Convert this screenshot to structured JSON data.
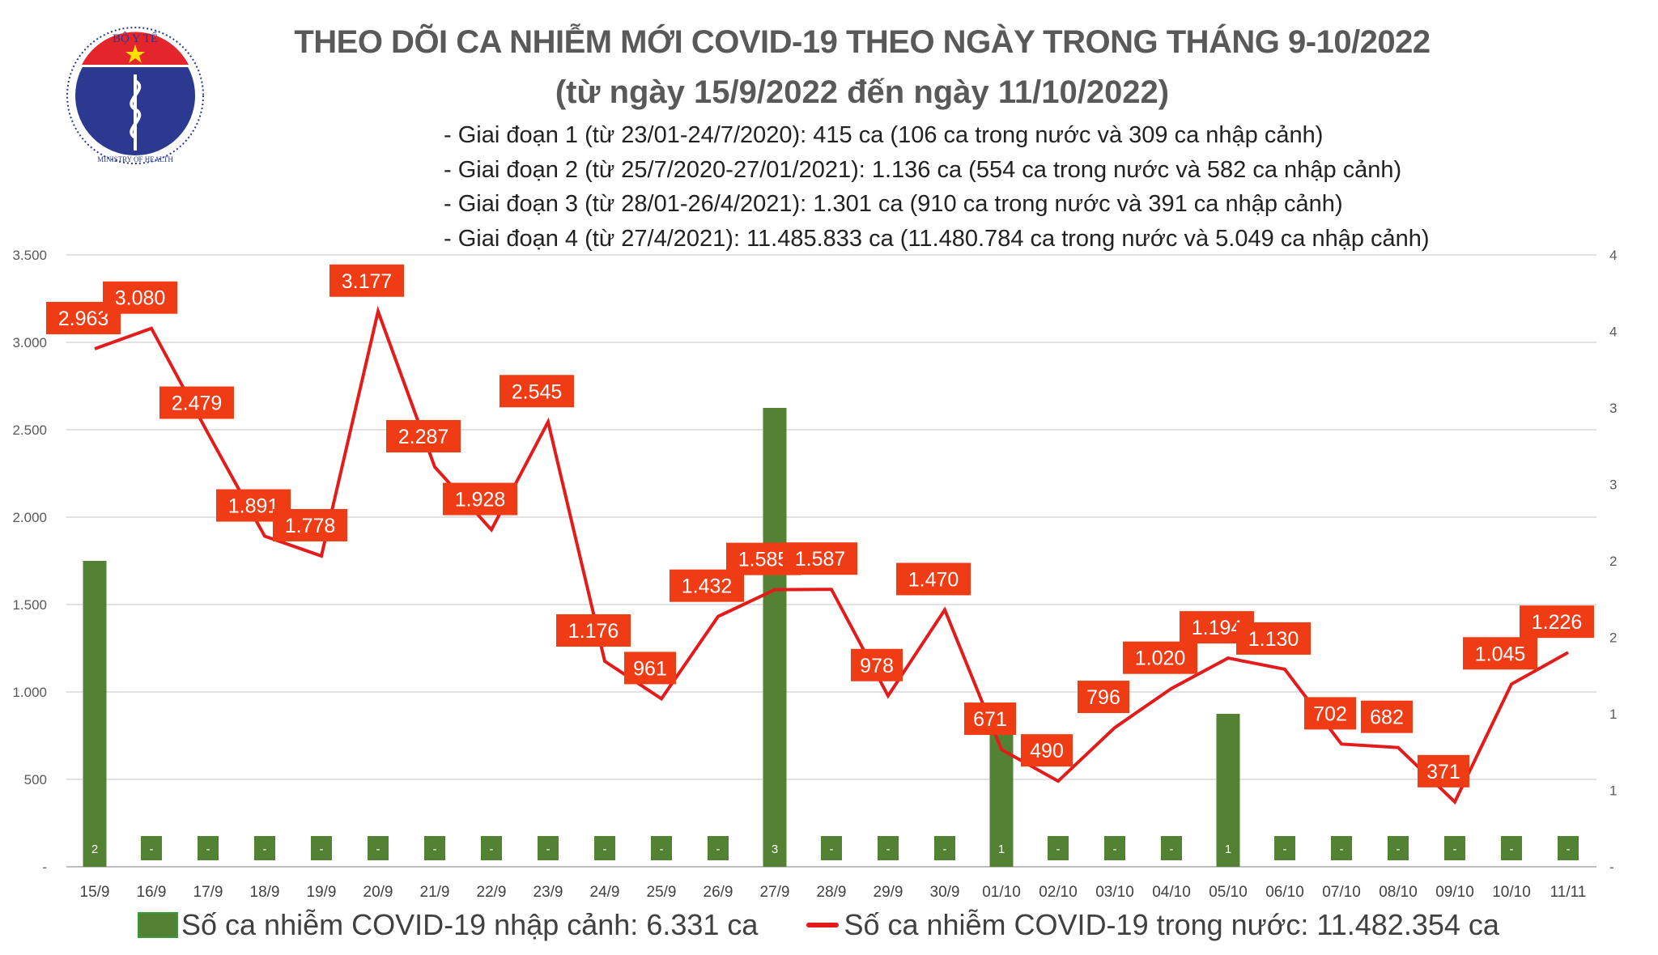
{
  "logo": {
    "text_top": "BỘ Y TẾ",
    "text_bottom": "MINISTRY OF HEALTH"
  },
  "chart_data": {
    "type": "bar+line",
    "title": "THEO DÕI CA NHIỄM MỚI COVID-19 THEO NGÀY TRONG THÁNG 9-10/2022",
    "subtitle": "(từ ngày 15/9/2022 đến ngày 11/10/2022)",
    "notes": [
      "- Giai đoạn 1 (từ 23/01-24/7/2020): 415 ca (106 ca trong nước và 309 ca nhập cảnh)",
      "- Giai đoạn 2 (từ 25/7/2020-27/01/2021): 1.136 ca (554 ca trong nước và 582 ca nhập cảnh)",
      "- Giai đoạn 3 (từ 28/01-26/4/2021): 1.301 ca (910 ca trong nước và 391 ca nhập cảnh)",
      "- Giai đoạn 4 (từ 27/4/2021): 11.485.833 ca (11.480.784 ca trong nước và 5.049 ca nhập cảnh)"
    ],
    "categories": [
      "15/9",
      "16/9",
      "17/9",
      "18/9",
      "19/9",
      "20/9",
      "21/9",
      "22/9",
      "23/9",
      "24/9",
      "25/9",
      "26/9",
      "27/9",
      "28/9",
      "29/9",
      "30/9",
      "01/10",
      "02/10",
      "03/10",
      "04/10",
      "05/10",
      "06/10",
      "07/10",
      "08/10",
      "09/10",
      "10/10",
      "11/11"
    ],
    "series": [
      {
        "name": "Số ca nhiễm COVID-19 nhập cảnh: 6.331 ca",
        "type": "bar",
        "axis": "right",
        "color": "#548235",
        "values": [
          2,
          0,
          0,
          0,
          0,
          0,
          0,
          0,
          0,
          0,
          0,
          0,
          3,
          0,
          0,
          0,
          1,
          0,
          0,
          0,
          1,
          0,
          0,
          0,
          0,
          0,
          0
        ],
        "labels": [
          "2",
          "-",
          "-",
          "-",
          "-",
          "-",
          "-",
          "-",
          "-",
          "-",
          "-",
          "-",
          "3",
          "-",
          "-",
          "-",
          "1",
          "-",
          "-",
          "-",
          "1",
          "-",
          "-",
          "-",
          "-",
          "-",
          "-"
        ]
      },
      {
        "name": "Số ca nhiễm COVID-19 trong nước: 11.482.354 ca",
        "type": "line",
        "axis": "left",
        "color": "#e41b1b",
        "label_bg": "#f03c14",
        "values": [
          2963,
          3080,
          2479,
          1891,
          1778,
          3177,
          2287,
          1928,
          2545,
          1176,
          961,
          1432,
          1585,
          1587,
          978,
          1470,
          671,
          490,
          796,
          1020,
          1194,
          1130,
          702,
          682,
          371,
          1045,
          1226
        ],
        "labels": [
          "2.963",
          "3.080",
          "2.479",
          "1.891",
          "1.778",
          "3.177",
          "2.287",
          "1.928",
          "2.545",
          "1.176",
          "961",
          "1.432",
          "1.585",
          "1.587",
          "978",
          "1.470",
          "671",
          "490",
          "796",
          "1.020",
          "1.194",
          "1.130",
          "702",
          "682",
          "371",
          "1.045",
          "1.226"
        ]
      }
    ],
    "y_left": {
      "range": [
        0,
        3500
      ],
      "ticks": [
        0,
        500,
        1000,
        1500,
        2000,
        2500,
        3000,
        3500
      ],
      "tick_labels": [
        "-",
        "500",
        "1.000",
        "1.500",
        "2.000",
        "2.500",
        "3.000",
        "3.500"
      ]
    },
    "y_right": {
      "range": [
        0,
        4
      ],
      "ticks": [
        0,
        0.5,
        1,
        1.5,
        2,
        2.5,
        3,
        3.5,
        4
      ],
      "tick_labels": [
        "-",
        "1",
        "1",
        "2",
        "2",
        "3",
        "3",
        "4",
        "4"
      ]
    },
    "grid": true,
    "legend_position": "bottom"
  }
}
